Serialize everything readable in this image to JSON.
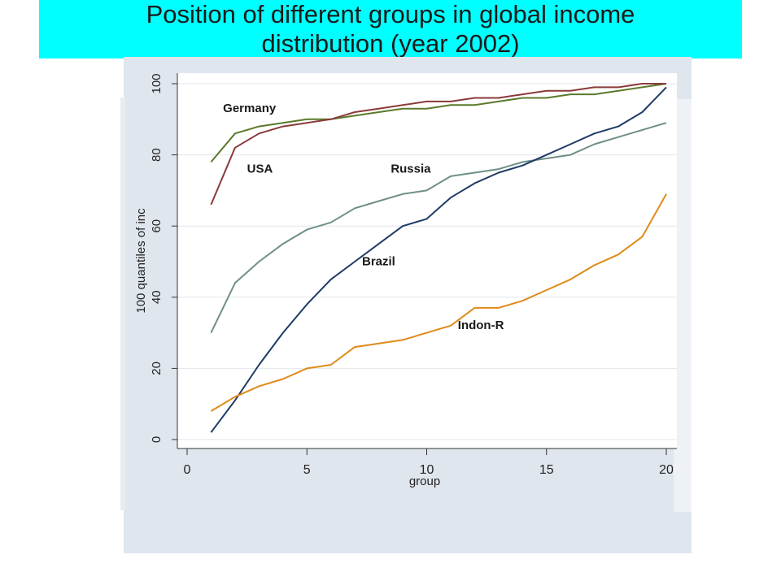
{
  "slide": {
    "title_line1": "Position of different groups in global income",
    "title_line2": "distribution (year 2002)",
    "banner_color": "#00ffff"
  },
  "chart_data": {
    "type": "line",
    "title": "",
    "xlabel": "group",
    "ylabel": "100 quantiles of inc",
    "xlim": [
      0,
      20
    ],
    "ylim": [
      0,
      100
    ],
    "xticks": [
      0,
      5,
      10,
      15,
      20
    ],
    "yticks": [
      0,
      20,
      40,
      60,
      80,
      100
    ],
    "grid": "horizontal",
    "x": [
      1,
      2,
      3,
      4,
      5,
      6,
      7,
      8,
      9,
      10,
      11,
      12,
      13,
      14,
      15,
      16,
      17,
      18,
      19,
      20
    ],
    "series": [
      {
        "name": "Germany",
        "color": "#5a7a2a",
        "values": [
          78,
          86,
          88,
          89,
          90,
          90,
          91,
          92,
          93,
          93,
          94,
          94,
          95,
          96,
          96,
          97,
          97,
          98,
          99,
          100
        ]
      },
      {
        "name": "USA",
        "color": "#8b3a3a",
        "values": [
          66,
          82,
          86,
          88,
          89,
          90,
          92,
          93,
          94,
          95,
          95,
          96,
          96,
          97,
          98,
          98,
          99,
          99,
          100,
          100
        ]
      },
      {
        "name": "Russia",
        "color": "#6e8f88",
        "values": [
          30,
          44,
          50,
          55,
          59,
          61,
          65,
          67,
          69,
          70,
          74,
          75,
          76,
          78,
          79,
          80,
          83,
          85,
          87,
          89
        ]
      },
      {
        "name": "Brazil",
        "color": "#1f3b66",
        "values": [
          2,
          11,
          21,
          30,
          38,
          45,
          50,
          55,
          60,
          62,
          68,
          72,
          75,
          77,
          80,
          83,
          86,
          88,
          92,
          99
        ]
      },
      {
        "name": "Indon-R",
        "color": "#e08a1a",
        "values": [
          8,
          12,
          15,
          17,
          20,
          21,
          26,
          27,
          28,
          30,
          32,
          37,
          37,
          39,
          42,
          45,
          49,
          52,
          57,
          69
        ]
      }
    ],
    "annotations": [
      {
        "text": "Germany",
        "x": 1.5,
        "y": 92
      },
      {
        "text": "USA",
        "x": 2.5,
        "y": 75
      },
      {
        "text": "Russia",
        "x": 8.5,
        "y": 75
      },
      {
        "text": "Brazil",
        "x": 7.3,
        "y": 49
      },
      {
        "text": "Indon-R",
        "x": 11.3,
        "y": 31
      }
    ]
  }
}
